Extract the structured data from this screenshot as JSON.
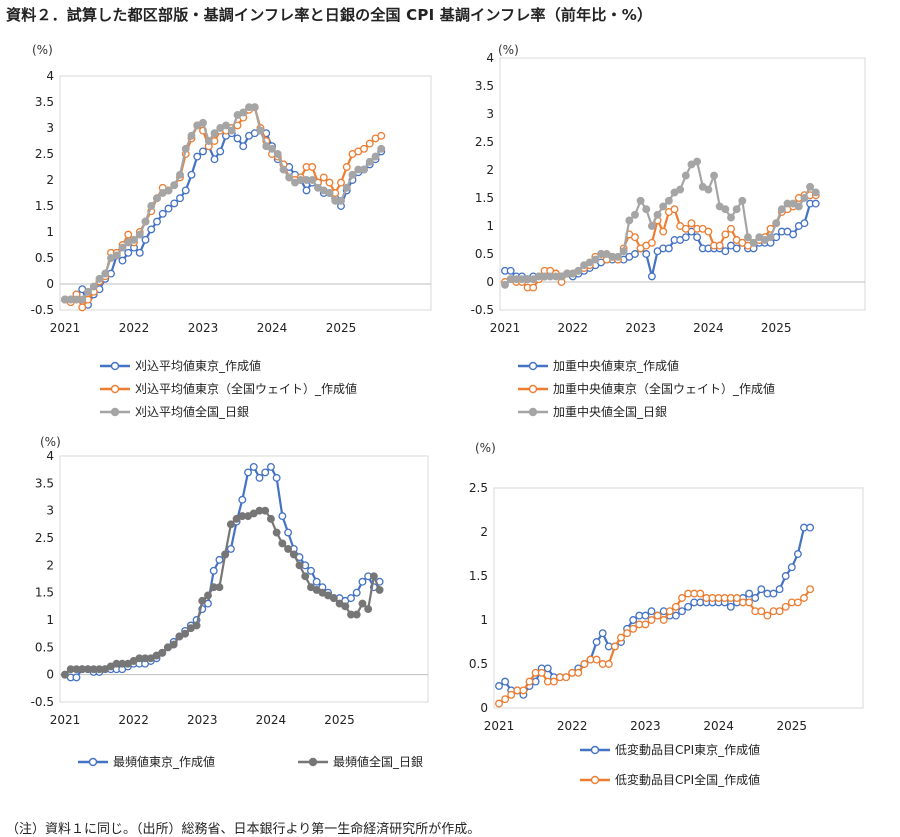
{
  "title": "資料２．試算した都区部版・基調インフレ率と日銀の全国 CPI 基調インフレ率（前年比・%）",
  "note": "（注）資料１に同じ。（出所）総務省、日本銀行より第一生命経済研究所が作成。",
  "colors": {
    "blue": "#4472C4",
    "orange": "#ED7D31",
    "gray": "#A5A5A5",
    "darkgray": "#767676"
  },
  "chart_data": [
    {
      "type": "line",
      "unit": "(%)",
      "ylim": [
        -0.5,
        4
      ],
      "yticks": [
        -0.5,
        0,
        0.5,
        1,
        1.5,
        2,
        2.5,
        3,
        3.5,
        4
      ],
      "ytick_labels": [
        "-0.5",
        "0",
        "0.5",
        "1",
        "1.5",
        "2",
        "2.5",
        "3",
        "3.5",
        "4"
      ],
      "x_start": "2021-01",
      "x_labels": [
        "2021",
        "2022",
        "2023",
        "2024",
        "2025"
      ],
      "series": [
        {
          "name": "刈込平均値東京_作成値",
          "color": "blue",
          "values": [
            -0.3,
            -0.3,
            -0.2,
            -0.1,
            -0.4,
            -0.2,
            -0.1,
            0.1,
            0.2,
            0.55,
            0.45,
            0.6,
            0.7,
            0.6,
            0.85,
            1.05,
            1.2,
            1.35,
            1.45,
            1.55,
            1.65,
            1.8,
            2.1,
            2.45,
            2.55,
            2.65,
            2.4,
            2.55,
            2.85,
            2.9,
            2.8,
            2.65,
            2.85,
            2.9,
            2.95,
            2.9,
            2.65,
            2.4,
            2.3,
            2.25,
            2.1,
            2.0,
            1.8,
            1.95,
            1.95,
            1.75,
            1.75,
            1.65,
            1.5,
            1.8,
            2.0,
            2.15,
            2.2,
            2.3,
            2.4,
            2.55
          ]
        },
        {
          "name": "刈込平均値東京（全国ウェイト）_作成値",
          "color": "orange",
          "values": [
            -0.3,
            -0.35,
            -0.2,
            -0.45,
            -0.3,
            -0.15,
            0.05,
            0.15,
            0.6,
            0.6,
            0.75,
            0.95,
            0.8,
            1.0,
            1.2,
            1.4,
            1.65,
            1.85,
            1.8,
            1.9,
            2.05,
            2.5,
            2.8,
            3.05,
            2.95,
            2.65,
            2.75,
            2.95,
            2.95,
            3.0,
            3.05,
            3.2,
            3.35,
            3.4,
            3.0,
            2.75,
            2.5,
            2.45,
            2.3,
            2.05,
            2.0,
            2.05,
            2.25,
            2.25,
            1.95,
            2.05,
            1.95,
            1.75,
            1.95,
            2.25,
            2.5,
            2.55,
            2.6,
            2.7,
            2.8,
            2.85
          ]
        },
        {
          "name": "刈込平均値全国_日銀",
          "color": "gray",
          "values": [
            -0.3,
            -0.3,
            -0.3,
            -0.3,
            -0.15,
            -0.05,
            0.1,
            0.2,
            0.5,
            0.55,
            0.7,
            0.8,
            0.85,
            0.95,
            1.2,
            1.5,
            1.65,
            1.75,
            1.8,
            1.9,
            2.1,
            2.6,
            2.85,
            3.05,
            3.1,
            2.75,
            2.9,
            3.0,
            3.05,
            2.95,
            3.25,
            3.3,
            3.4,
            3.4,
            2.95,
            2.65,
            2.6,
            2.5,
            2.2,
            2.05,
            1.95,
            2.0,
            2.0,
            2.0,
            1.85,
            1.8,
            1.75,
            1.6,
            1.6,
            1.85,
            2.1,
            2.2,
            2.2,
            2.35,
            2.45,
            2.6
          ]
        }
      ]
    },
    {
      "type": "line",
      "unit": "(%)",
      "ylim": [
        -0.5,
        4
      ],
      "yticks": [
        -0.5,
        0,
        0.5,
        1,
        1.5,
        2,
        2.5,
        3,
        3.5,
        4
      ],
      "ytick_labels": [
        "-0.5",
        "0",
        "0.5",
        "1",
        "1.5",
        "2",
        "2.5",
        "3",
        "3.5",
        "4"
      ],
      "x_start": "2021-01",
      "x_labels": [
        "2021",
        "2022",
        "2023",
        "2024",
        "2025"
      ],
      "series": [
        {
          "name": "加重中央値東京_作成値",
          "color": "blue",
          "values": [
            0.2,
            0.2,
            0.1,
            0.1,
            0.05,
            0.1,
            0.1,
            0.1,
            0.15,
            0.15,
            0.1,
            0.15,
            0.1,
            0.15,
            0.2,
            0.25,
            0.3,
            0.35,
            0.4,
            0.4,
            0.4,
            0.4,
            0.45,
            0.5,
            0.6,
            0.5,
            0.1,
            0.55,
            0.6,
            0.6,
            0.75,
            0.75,
            0.8,
            0.9,
            0.8,
            0.6,
            0.6,
            0.6,
            0.6,
            0.55,
            0.65,
            0.6,
            0.7,
            0.6,
            0.6,
            0.7,
            0.7,
            0.7,
            0.8,
            0.9,
            0.9,
            0.85,
            1.0,
            1.05,
            1.4,
            1.4
          ]
        },
        {
          "name": "加重中央値東京（全国ウェイト）_作成値",
          "color": "orange",
          "values": [
            0.0,
            0.05,
            0.0,
            0.0,
            -0.1,
            -0.1,
            0.05,
            0.2,
            0.2,
            0.15,
            0.0,
            0.15,
            0.15,
            0.2,
            0.25,
            0.3,
            0.45,
            0.5,
            0.4,
            0.45,
            0.4,
            0.6,
            0.85,
            0.8,
            0.6,
            0.65,
            0.7,
            1.1,
            0.9,
            1.25,
            1.3,
            1.0,
            0.95,
            1.05,
            0.95,
            0.95,
            0.9,
            0.65,
            0.65,
            0.85,
            0.95,
            0.75,
            0.7,
            0.65,
            0.7,
            0.75,
            0.8,
            0.95,
            1.05,
            1.25,
            1.3,
            1.35,
            1.5,
            1.55,
            1.55,
            1.55
          ]
        },
        {
          "name": "加重中央値全国_日銀",
          "color": "gray",
          "values": [
            -0.05,
            0.05,
            0.05,
            0.05,
            0.05,
            0.05,
            0.1,
            0.1,
            0.1,
            0.1,
            0.1,
            0.15,
            0.15,
            0.2,
            0.3,
            0.35,
            0.4,
            0.5,
            0.5,
            0.45,
            0.45,
            0.55,
            1.1,
            1.2,
            1.45,
            1.3,
            1.0,
            1.2,
            1.35,
            1.45,
            1.6,
            1.65,
            1.9,
            2.1,
            2.15,
            1.7,
            1.65,
            1.9,
            1.35,
            1.3,
            1.15,
            1.3,
            1.45,
            0.8,
            0.7,
            0.8,
            0.75,
            0.8,
            1.05,
            1.3,
            1.4,
            1.4,
            1.35,
            1.5,
            1.7,
            1.6
          ]
        }
      ]
    },
    {
      "type": "line",
      "unit": "(%)",
      "ylim": [
        -0.5,
        4
      ],
      "yticks": [
        -0.5,
        0,
        0.5,
        1,
        1.5,
        2,
        2.5,
        3,
        3.5,
        4
      ],
      "ytick_labels": [
        "-0.5",
        "0",
        "0.5",
        "1",
        "1.5",
        "2",
        "2.5",
        "3",
        "3.5",
        "4"
      ],
      "x_start": "2021-01",
      "x_labels": [
        "2021",
        "2022",
        "2023",
        "2024",
        "2025"
      ],
      "series": [
        {
          "name": "最頻値東京_作成値",
          "color": "blue",
          "values": [
            0.0,
            -0.05,
            -0.05,
            0.1,
            0.1,
            0.05,
            0.05,
            0.1,
            0.1,
            0.1,
            0.1,
            0.15,
            0.2,
            0.2,
            0.2,
            0.25,
            0.3,
            0.4,
            0.5,
            0.6,
            0.7,
            0.8,
            0.9,
            1.0,
            1.2,
            1.3,
            1.9,
            2.1,
            2.2,
            2.3,
            2.8,
            3.2,
            3.7,
            3.8,
            3.6,
            3.7,
            3.8,
            3.6,
            2.9,
            2.6,
            2.3,
            2.15,
            2.0,
            1.9,
            1.7,
            1.6,
            1.5,
            1.4,
            1.4,
            1.35,
            1.4,
            1.5,
            1.7,
            1.8,
            1.6,
            1.7
          ]
        },
        {
          "name": "最頻値全国_日銀",
          "color": "darkgray",
          "values": [
            0.0,
            0.1,
            0.1,
            0.1,
            0.1,
            0.1,
            0.1,
            0.1,
            0.15,
            0.2,
            0.2,
            0.2,
            0.25,
            0.3,
            0.3,
            0.3,
            0.35,
            0.4,
            0.5,
            0.55,
            0.7,
            0.75,
            0.85,
            0.9,
            1.35,
            1.45,
            1.6,
            1.6,
            2.2,
            2.75,
            2.85,
            2.9,
            2.9,
            2.95,
            3.0,
            3.0,
            2.85,
            2.6,
            2.4,
            2.3,
            2.2,
            2.0,
            1.8,
            1.6,
            1.55,
            1.5,
            1.45,
            1.4,
            1.3,
            1.25,
            1.1,
            1.1,
            1.3,
            1.2,
            1.8,
            1.55
          ]
        }
      ]
    },
    {
      "type": "line",
      "unit": "(%)",
      "ylim": [
        0,
        2.5
      ],
      "yticks": [
        0,
        0.5,
        1,
        1.5,
        2,
        2.5
      ],
      "ytick_labels": [
        "0",
        "0.5",
        "1",
        "1.5",
        "2",
        "2.5"
      ],
      "x_start": "2021-01",
      "x_labels": [
        "2021",
        "2022",
        "2023",
        "2024",
        "2025"
      ],
      "series": [
        {
          "name": "低変動品目CPI東京_作成値",
          "color": "blue",
          "values": [
            0.25,
            0.3,
            0.2,
            0.2,
            0.15,
            0.25,
            0.3,
            0.45,
            0.45,
            0.35,
            0.35,
            0.35,
            0.4,
            0.45,
            0.5,
            0.55,
            0.75,
            0.85,
            0.7,
            0.7,
            0.75,
            0.9,
            1.0,
            1.05,
            1.05,
            1.1,
            1.05,
            1.1,
            1.05,
            1.05,
            1.1,
            1.15,
            1.2,
            1.2,
            1.2,
            1.2,
            1.2,
            1.2,
            1.15,
            1.2,
            1.25,
            1.3,
            1.25,
            1.35,
            1.3,
            1.3,
            1.35,
            1.5,
            1.6,
            1.75,
            2.05,
            2.05
          ]
        },
        {
          "name": "低変動品目CPI全国_作成値",
          "color": "orange",
          "values": [
            0.05,
            0.1,
            0.15,
            0.2,
            0.2,
            0.3,
            0.4,
            0.4,
            0.3,
            0.3,
            0.35,
            0.35,
            0.4,
            0.4,
            0.5,
            0.55,
            0.55,
            0.5,
            0.5,
            0.7,
            0.8,
            0.85,
            0.9,
            0.95,
            0.95,
            1.0,
            1.05,
            1.0,
            1.1,
            1.15,
            1.25,
            1.3,
            1.3,
            1.3,
            1.25,
            1.25,
            1.25,
            1.25,
            1.25,
            1.25,
            1.2,
            1.2,
            1.1,
            1.1,
            1.05,
            1.1,
            1.1,
            1.15,
            1.2,
            1.2,
            1.25,
            1.35
          ]
        }
      ]
    }
  ]
}
